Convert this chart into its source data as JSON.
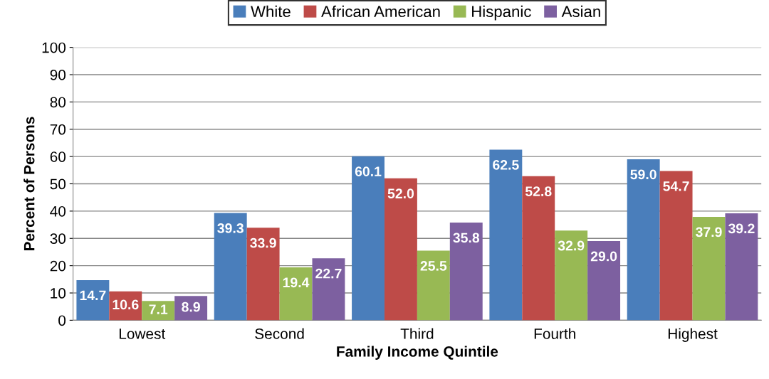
{
  "chart_data": {
    "type": "bar",
    "xlabel": "Family Income Quintile",
    "ylabel": "Percent of Persons",
    "categories": [
      "Lowest",
      "Second",
      "Third",
      "Fourth",
      "Highest"
    ],
    "series": [
      {
        "name": "White",
        "color": "#4a7ebb",
        "values": [
          14.7,
          39.3,
          60.1,
          62.5,
          59.0
        ],
        "value_labels": [
          "14.7",
          "39.3",
          "60.1",
          "62.5",
          "59.0"
        ]
      },
      {
        "name": "African American",
        "color": "#be4b48",
        "values": [
          10.6,
          33.9,
          52.0,
          52.8,
          54.7
        ],
        "value_labels": [
          "10.6",
          "33.9",
          "52.0",
          "52.8",
          "54.7"
        ]
      },
      {
        "name": "Hispanic",
        "color": "#98b954",
        "values": [
          7.1,
          19.4,
          25.5,
          32.9,
          37.9
        ],
        "value_labels": [
          "7.1",
          "19.4",
          "25.5",
          "32.9",
          "37.9"
        ]
      },
      {
        "name": "Asian",
        "color": "#7d60a0",
        "values": [
          8.9,
          22.7,
          35.8,
          29.0,
          39.2
        ],
        "value_labels": [
          "8.9",
          "22.7",
          "35.8",
          "29.0",
          "39.2"
        ]
      }
    ],
    "ylim": [
      0,
      100
    ],
    "yticks": [
      0,
      10,
      20,
      30,
      40,
      50,
      60,
      70,
      80,
      90,
      100
    ],
    "grid": "y",
    "legend": "top"
  }
}
